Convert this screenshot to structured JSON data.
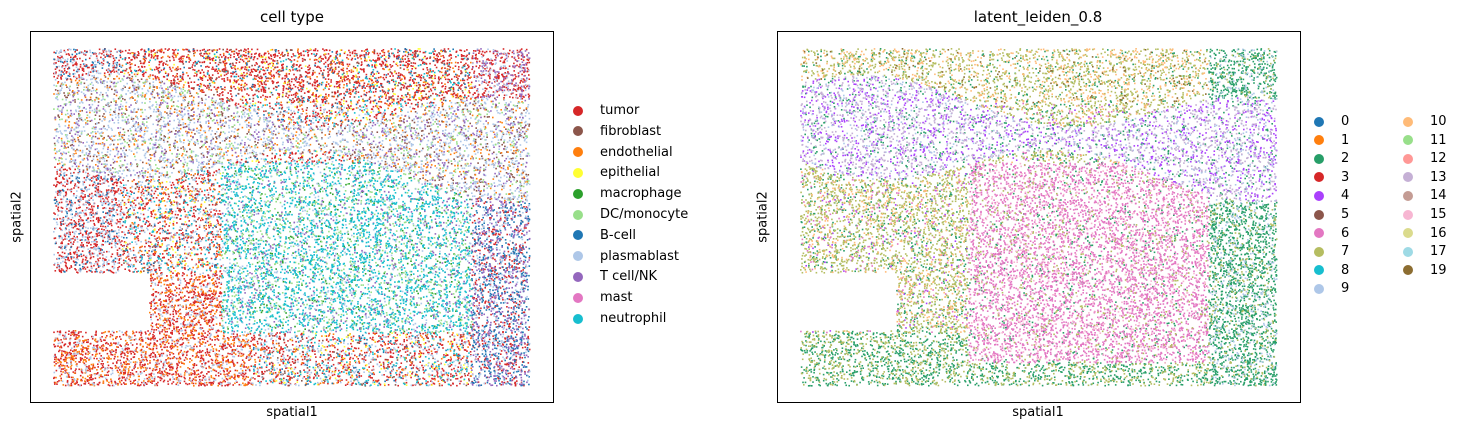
{
  "chart_data": [
    {
      "type": "scatter",
      "title": "cell type",
      "xlabel": "spatial1",
      "ylabel": "spatial2",
      "ticks": "none",
      "legend_position": "right",
      "categories": [
        {
          "name": "tumor",
          "color": "#d62728"
        },
        {
          "name": "fibroblast",
          "color": "#8c564b"
        },
        {
          "name": "endothelial",
          "color": "#ff7f0e"
        },
        {
          "name": "epithelial",
          "color": "#ffff33"
        },
        {
          "name": "macrophage",
          "color": "#2ca02c"
        },
        {
          "name": "DC/monocyte",
          "color": "#98df8a"
        },
        {
          "name": "B-cell",
          "color": "#1f77b4"
        },
        {
          "name": "plasmablast",
          "color": "#aec7e8"
        },
        {
          "name": "T cell/NK",
          "color": "#9467bd"
        },
        {
          "name": "mast",
          "color": "#e377c2"
        },
        {
          "name": "neutrophil",
          "color": "#17becf"
        }
      ]
    },
    {
      "type": "scatter",
      "title": "latent_leiden_0.8",
      "xlabel": "spatial1",
      "ylabel": "spatial2",
      "ticks": "none",
      "legend_position": "right",
      "legend_columns": 2,
      "categories": [
        {
          "name": "0",
          "color": "#1f77b4"
        },
        {
          "name": "1",
          "color": "#ff7f0e"
        },
        {
          "name": "2",
          "color": "#279e68"
        },
        {
          "name": "3",
          "color": "#d62728"
        },
        {
          "name": "4",
          "color": "#aa40fc"
        },
        {
          "name": "5",
          "color": "#8c564b"
        },
        {
          "name": "6",
          "color": "#e377c2"
        },
        {
          "name": "7",
          "color": "#b5bd61"
        },
        {
          "name": "8",
          "color": "#17becf"
        },
        {
          "name": "9",
          "color": "#aec7e8"
        },
        {
          "name": "10",
          "color": "#ffbb78"
        },
        {
          "name": "11",
          "color": "#98df8a"
        },
        {
          "name": "12",
          "color": "#ff9896"
        },
        {
          "name": "13",
          "color": "#c5b0d5"
        },
        {
          "name": "14",
          "color": "#c49c94"
        },
        {
          "name": "15",
          "color": "#f7b6d2"
        },
        {
          "name": "16",
          "color": "#dbdb8d"
        },
        {
          "name": "17",
          "color": "#9edae5"
        },
        {
          "name": "19",
          "color": "#8c6d31"
        }
      ]
    }
  ]
}
